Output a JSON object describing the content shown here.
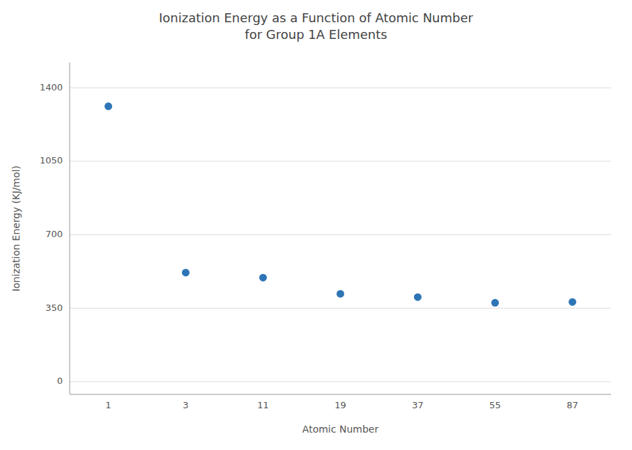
{
  "chart_data": {
    "type": "scatter",
    "title": "Ionization Energy as a Function of Atomic Number\nfor Group 1A Elements",
    "xlabel": "Atomic Number",
    "ylabel": "Ionization Energy (KJ/mol)",
    "categories": [
      "1",
      "3",
      "11",
      "19",
      "37",
      "55",
      "87"
    ],
    "values": [
      1312,
      520,
      496,
      419,
      403,
      376,
      380
    ],
    "color": "#2E75B6",
    "ylim": [
      -60,
      1520
    ],
    "yticks": [
      0,
      350,
      700,
      1050,
      1400
    ],
    "grid": true
  }
}
